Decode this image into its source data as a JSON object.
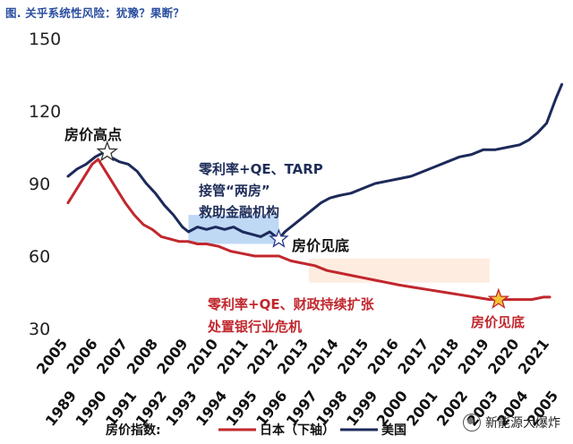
{
  "title": "图. 关乎系统性风险：犹豫？果断？",
  "chart_data": {
    "type": "line",
    "y_ticks": [
      30,
      60,
      90,
      120,
      150
    ],
    "ylim": [
      30,
      155
    ],
    "x_top_ticks": [
      "2005",
      "2006",
      "2007",
      "2008",
      "2009",
      "2010",
      "2011",
      "2012",
      "2013",
      "2014",
      "2015",
      "2016",
      "2017",
      "2018",
      "2019",
      "2020",
      "2021"
    ],
    "x_bottom_ticks": [
      "1989",
      "1990",
      "1991",
      "1992",
      "1993",
      "1994",
      "1995",
      "1996",
      "1997",
      "1998",
      "1999",
      "2000",
      "2001",
      "2002",
      "2003",
      "2004",
      "2005"
    ],
    "series": [
      {
        "name": "美国",
        "color": "#1c2a5a",
        "axis": "top",
        "x": [
          2005.0,
          2005.3,
          2005.6,
          2005.9,
          2006.2,
          2006.4,
          2006.7,
          2007.0,
          2007.3,
          2007.6,
          2007.9,
          2008.2,
          2008.5,
          2008.8,
          2009.0,
          2009.3,
          2009.6,
          2009.9,
          2010.2,
          2010.5,
          2010.8,
          2011.1,
          2011.4,
          2011.7,
          2012.0,
          2012.2,
          2012.5,
          2012.8,
          2013.1,
          2013.4,
          2013.7,
          2014.0,
          2014.4,
          2014.8,
          2015.2,
          2015.6,
          2016.0,
          2016.4,
          2016.8,
          2017.2,
          2017.6,
          2018.0,
          2018.4,
          2018.8,
          2019.2,
          2019.6,
          2020.0,
          2020.3,
          2020.6,
          2020.9,
          2021.2,
          2021.4
        ],
        "values": [
          93,
          96,
          98,
          101,
          103,
          101,
          99,
          98,
          95,
          90,
          86,
          81,
          77,
          72,
          70,
          72,
          71,
          72,
          71,
          72,
          70,
          69,
          68,
          70,
          67,
          70,
          73,
          76,
          79,
          82,
          84,
          85,
          86,
          88,
          90,
          91,
          92,
          93,
          95,
          97,
          99,
          101,
          102,
          104,
          104,
          105,
          106,
          108,
          111,
          115,
          125,
          131
        ]
      },
      {
        "name": "日本",
        "color": "#c1272d",
        "axis": "bottom",
        "x": [
          1989.0,
          1989.3,
          1989.6,
          1989.8,
          1990.0,
          1990.3,
          1990.6,
          1990.9,
          1991.2,
          1991.5,
          1991.8,
          1992.1,
          1992.4,
          1992.7,
          1993.0,
          1993.3,
          1993.6,
          1994.0,
          1994.4,
          1994.8,
          1995.2,
          1995.6,
          1996.0,
          1996.4,
          1996.8,
          1997.2,
          1997.6,
          1998.0,
          1998.4,
          1998.8,
          1999.2,
          1999.6,
          2000.0,
          2000.5,
          2001.0,
          2001.5,
          2002.0,
          2002.5,
          2003.0,
          2003.3,
          2003.6,
          2004.0,
          2004.4,
          2004.8,
          2005.0
        ],
        "values": [
          82,
          88,
          94,
          98,
          100,
          94,
          88,
          82,
          77,
          73,
          71,
          68,
          67,
          66,
          66,
          65,
          65,
          64,
          62,
          61,
          60,
          60,
          60,
          58,
          57,
          56,
          54,
          53,
          52,
          51,
          50,
          49,
          48,
          47,
          46,
          45,
          44,
          43,
          42,
          42,
          42,
          42,
          42,
          43,
          43
        ]
      }
    ],
    "annotations": [
      {
        "id": "us_peak",
        "text": "房价高点",
        "year": 2006.3,
        "y": 103,
        "axis": "top",
        "color": "#111"
      },
      {
        "id": "us_bottom",
        "text": "房价见底",
        "year": 2012.0,
        "y": 67,
        "axis": "top",
        "color": "#111"
      },
      {
        "id": "jp_bottom",
        "text": "房价见底",
        "year": 2003.3,
        "y": 42,
        "axis": "bottom",
        "color": "#c1272d"
      },
      {
        "id": "us_policy_1",
        "text": "零利率+QE、TARP",
        "color": "#1f2d5a"
      },
      {
        "id": "us_policy_2",
        "text": "接管“两房”",
        "color": "#1f2d5a"
      },
      {
        "id": "us_policy_3",
        "text": "救助金融机构",
        "color": "#1f2d5a"
      },
      {
        "id": "jp_policy_1",
        "text": "零利率+QE、财政持续扩张",
        "color": "#c1272d"
      },
      {
        "id": "jp_policy_2",
        "text": "处置银行业危机",
        "color": "#c1272d"
      }
    ],
    "legend": {
      "label": "房价指数:",
      "items": [
        {
          "name": "日本（下轴）",
          "color": "#c1272d"
        },
        {
          "name": "美国",
          "color": "#1c2a5a"
        }
      ]
    },
    "shaded_ranges": [
      {
        "axis": "top",
        "from": 2009.0,
        "to": 2012.0,
        "y_from": 65,
        "y_to": 77,
        "color": "#a9cbf0"
      },
      {
        "axis": "bottom",
        "from": 1997.0,
        "to": 2003.0,
        "y_from": 49,
        "y_to": 59,
        "color": "#fde6d6"
      }
    ],
    "grid": false
  },
  "watermark": "新能源大爆炸"
}
